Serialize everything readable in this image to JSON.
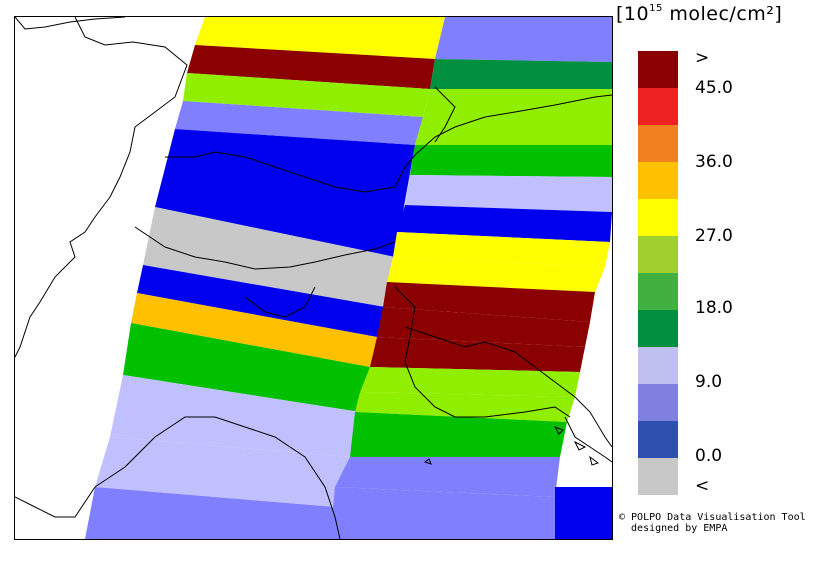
{
  "legend": {
    "unit_prefix": "[10",
    "unit_exponent": "15",
    "unit_suffix": " molec/cm²]",
    "ticks": [
      ">",
      "45.0",
      "36.0",
      "27.0",
      "18.0",
      "9.0",
      "0.0",
      "<"
    ],
    "colors": [
      "#8b0000",
      "#ee2222",
      "#f08020",
      "#ffc000",
      "#ffff00",
      "#a0d030",
      "#40b040",
      "#009040",
      "#c0c0f0",
      "#8080e0",
      "#3050b0",
      "#c8c8c8"
    ]
  },
  "credits": {
    "line1": "© POLPO Data Visualisation Tool",
    "line2": "  designed by EMPA"
  },
  "map": {
    "swaths": [
      {
        "color": "#8b0000",
        "category": ">"
      },
      {
        "color": "#ffff00",
        "category": "27.0-31.5"
      },
      {
        "color": "#8080ff",
        "category": "9.0-13.5"
      },
      {
        "color": "#009040",
        "category": "18.0-22.5"
      },
      {
        "color": "#90ee00",
        "category": "22.5-27.0"
      },
      {
        "color": "#0000ee",
        "category": "0.0-4.5"
      },
      {
        "color": "#00c000",
        "category": "18.0-22.5"
      },
      {
        "color": "#c8c8c8",
        "category": "<"
      },
      {
        "color": "#c0c0ff",
        "category": "4.5-9.0"
      },
      {
        "color": "#ffc000",
        "category": "31.5-36.0"
      }
    ]
  }
}
